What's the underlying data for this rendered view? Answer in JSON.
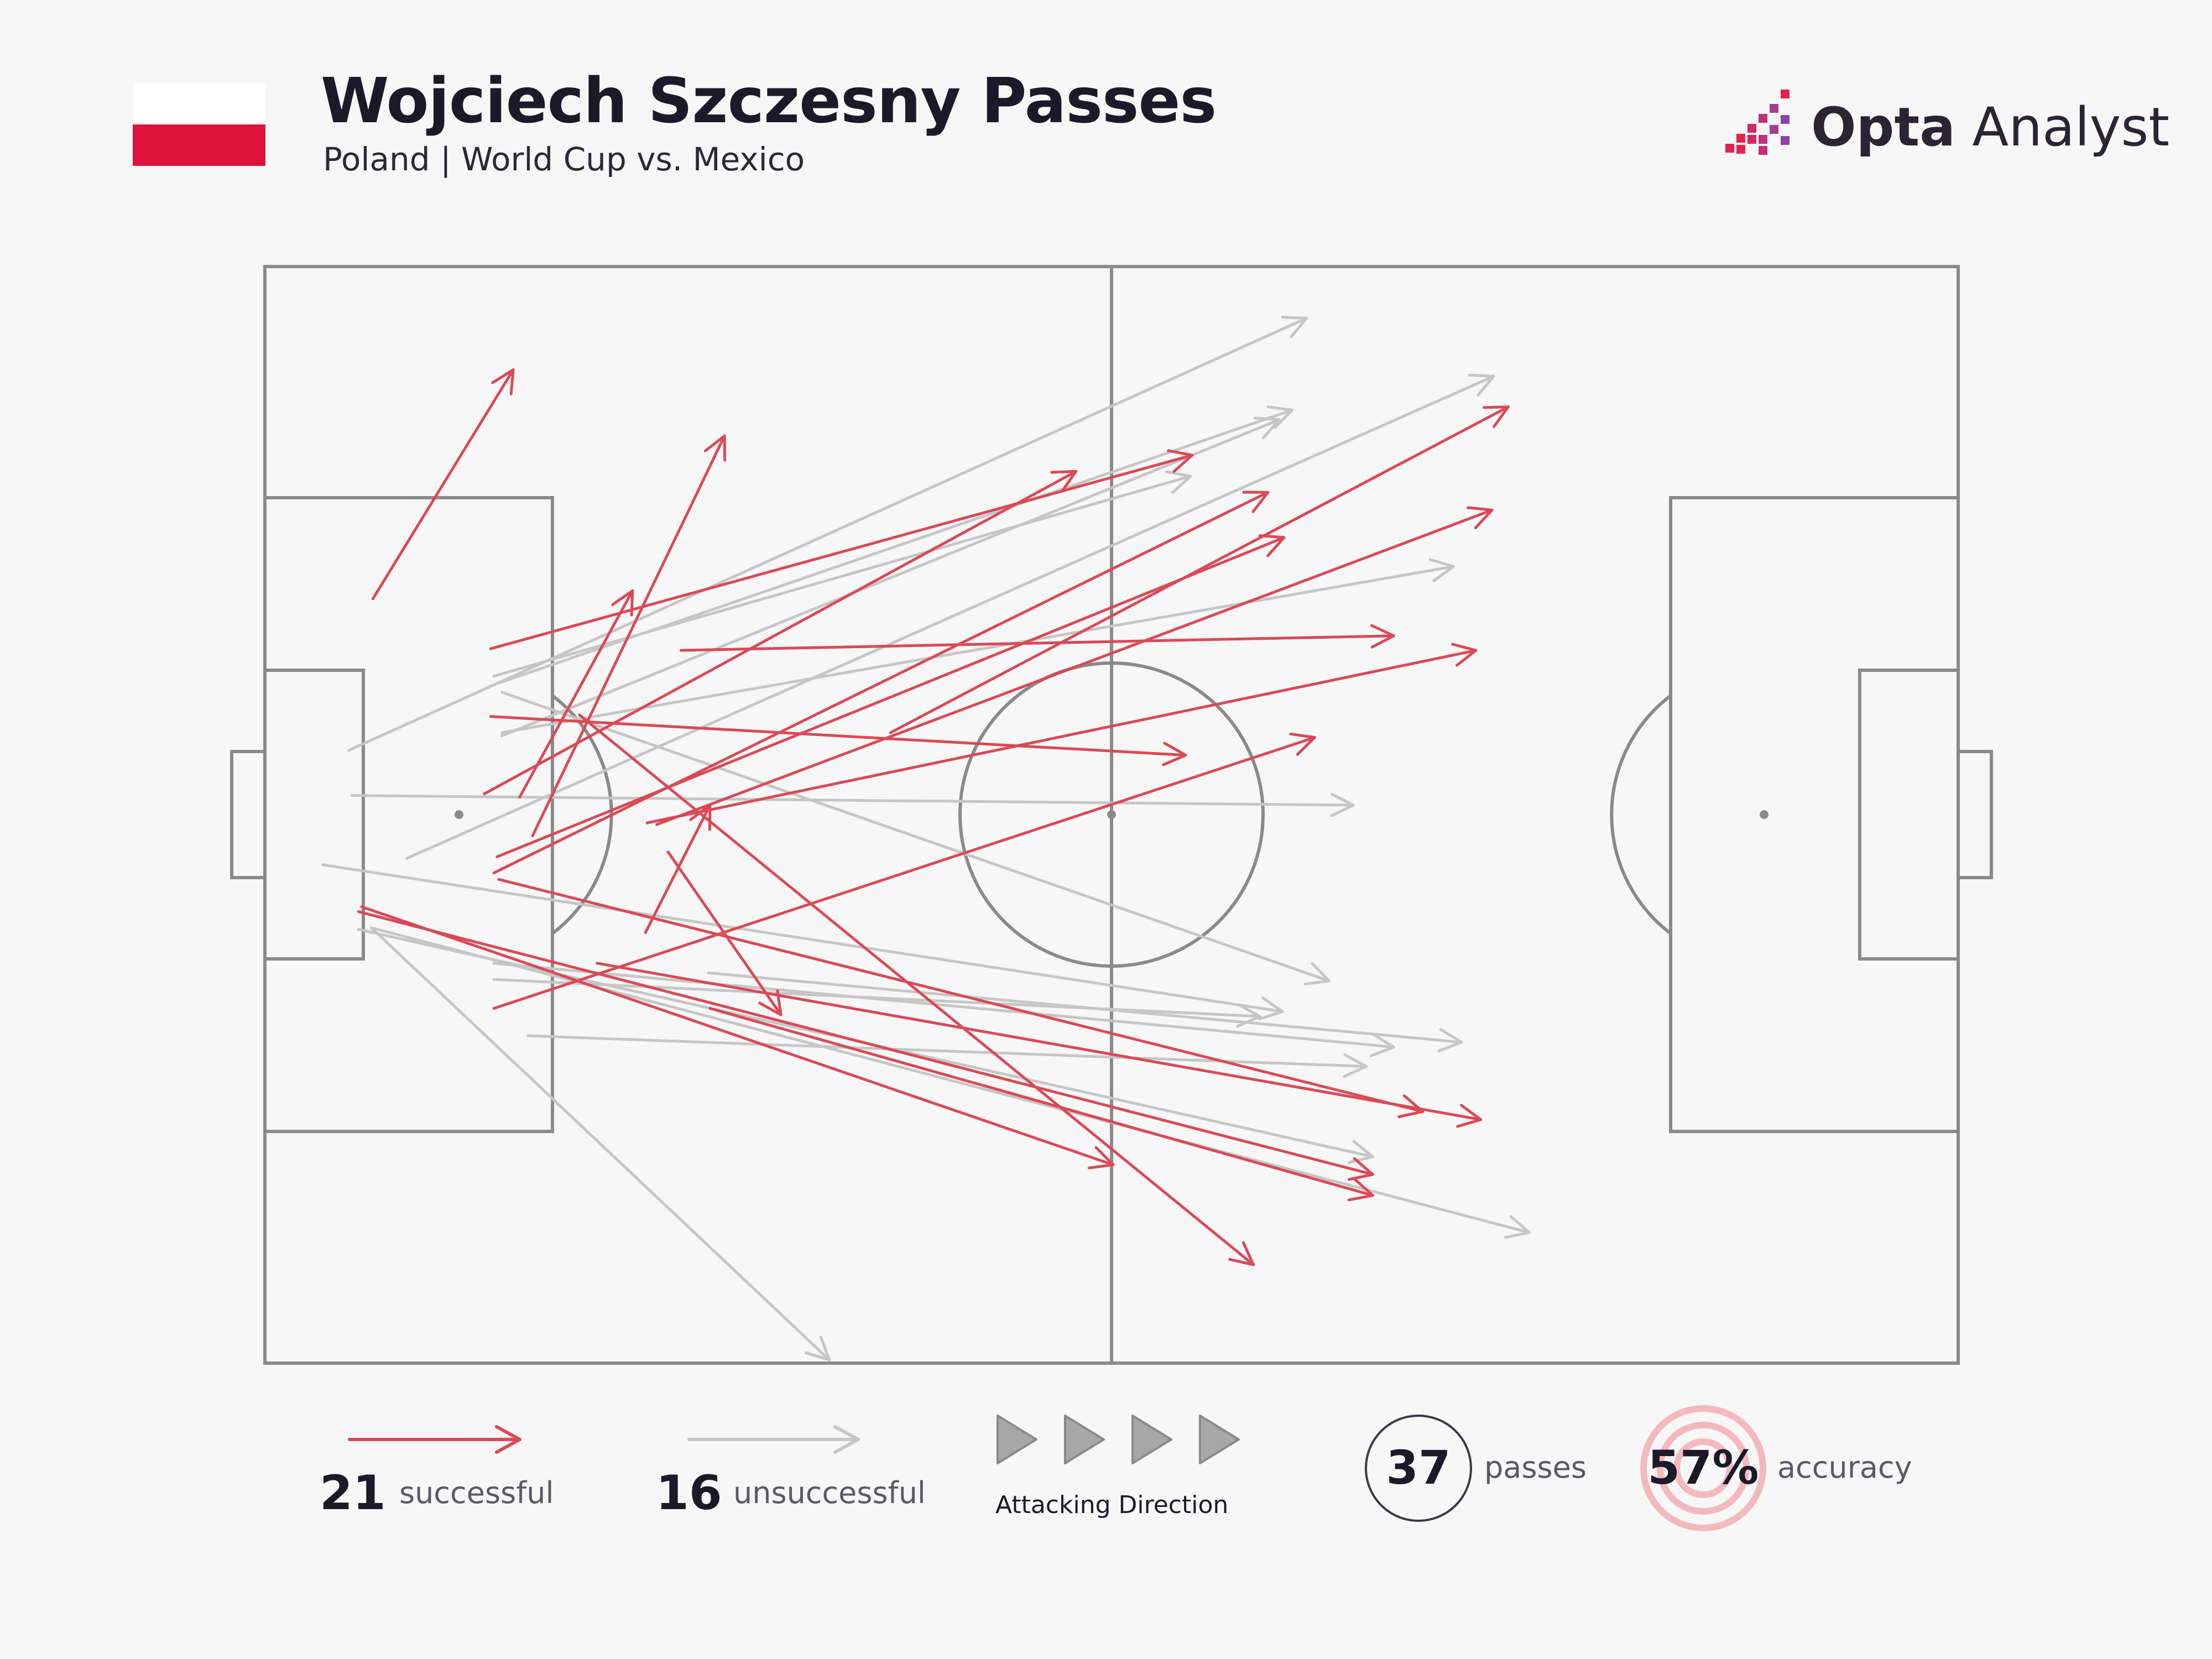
{
  "header": {
    "title": "Wojciech Szczesny Passes",
    "subtitle": "Poland | World Cup vs. Mexico"
  },
  "brand": {
    "name_strong": "Opta",
    "name_light": " Analyst",
    "icon": "opta-bars-icon"
  },
  "flag": {
    "top_color": "#ffffff",
    "bottom_color": "#dc143c"
  },
  "colors": {
    "successful": "#d94a57",
    "unsuccessful": "#c6c6c6",
    "pitch_lines": "#8a8a8a",
    "accent_ring": "#f3b9bf"
  },
  "legend": {
    "successful_count": "21",
    "successful_label": "successful",
    "unsuccessful_count": "16",
    "unsuccessful_label": "unsuccessful",
    "direction_label": "Attacking Direction",
    "passes_total": "37",
    "passes_label": "passes",
    "accuracy_value": "57%",
    "accuracy_label": "accuracy"
  },
  "chart_data": {
    "type": "pass_map",
    "pitch": {
      "length": 105,
      "width": 68
    },
    "attacking_direction": "right",
    "successful": [
      {
        "x1": 6.7,
        "y1": 47.4,
        "x2": 15.4,
        "y2": 61.6
      },
      {
        "x1": 16.6,
        "y1": 32.7,
        "x2": 28.5,
        "y2": 57.5
      },
      {
        "x1": 15.8,
        "y1": 35.1,
        "x2": 22.8,
        "y2": 47.9
      },
      {
        "x1": 14.0,
        "y1": 44.3,
        "x2": 57.5,
        "y2": 56.3
      },
      {
        "x1": 14.0,
        "y1": 40.1,
        "x2": 57.1,
        "y2": 37.7
      },
      {
        "x1": 25.8,
        "y1": 44.2,
        "x2": 70.0,
        "y2": 45.1
      },
      {
        "x1": 13.6,
        "y1": 35.3,
        "x2": 50.3,
        "y2": 55.3
      },
      {
        "x1": 23.6,
        "y1": 26.7,
        "x2": 27.6,
        "y2": 34.6
      },
      {
        "x1": 38.8,
        "y1": 39.1,
        "x2": 77.1,
        "y2": 59.3
      },
      {
        "x1": 14.4,
        "y1": 31.4,
        "x2": 63.2,
        "y2": 51.2
      },
      {
        "x1": 24.3,
        "y1": 33.4,
        "x2": 76.1,
        "y2": 52.9
      },
      {
        "x1": 23.7,
        "y1": 33.5,
        "x2": 75.1,
        "y2": 44.2
      },
      {
        "x1": 14.2,
        "y1": 30.4,
        "x2": 62.2,
        "y2": 54.0
      },
      {
        "x1": 14.2,
        "y1": 22.0,
        "x2": 65.1,
        "y2": 38.8
      },
      {
        "x1": 6.0,
        "y1": 28.3,
        "x2": 52.6,
        "y2": 12.3
      },
      {
        "x1": 14.5,
        "y1": 30.0,
        "x2": 71.8,
        "y2": 15.6
      },
      {
        "x1": 5.8,
        "y1": 28.0,
        "x2": 68.7,
        "y2": 11.7
      },
      {
        "x1": 19.5,
        "y1": 40.2,
        "x2": 61.3,
        "y2": 6.1
      },
      {
        "x1": 20.6,
        "y1": 24.8,
        "x2": 75.4,
        "y2": 15.1
      },
      {
        "x1": 27.6,
        "y1": 22.0,
        "x2": 68.7,
        "y2": 10.4
      },
      {
        "x1": 25.0,
        "y1": 31.7,
        "x2": 32.0,
        "y2": 21.6
      }
    ],
    "unsuccessful": [
      {
        "x1": 5.2,
        "y1": 38.0,
        "x2": 64.6,
        "y2": 64.8
      },
      {
        "x1": 14.0,
        "y1": 42.0,
        "x2": 63.7,
        "y2": 59.1
      },
      {
        "x1": 14.7,
        "y1": 39.1,
        "x2": 73.7,
        "y2": 49.4
      },
      {
        "x1": 8.8,
        "y1": 31.3,
        "x2": 76.2,
        "y2": 61.2
      },
      {
        "x1": 14.2,
        "y1": 42.6,
        "x2": 57.4,
        "y2": 55.0
      },
      {
        "x1": 14.7,
        "y1": 38.9,
        "x2": 62.9,
        "y2": 58.5
      },
      {
        "x1": 5.4,
        "y1": 35.2,
        "x2": 67.5,
        "y2": 34.6
      },
      {
        "x1": 14.7,
        "y1": 41.6,
        "x2": 66.0,
        "y2": 23.7
      },
      {
        "x1": 3.6,
        "y1": 30.9,
        "x2": 63.1,
        "y2": 21.8
      },
      {
        "x1": 14.2,
        "y1": 23.8,
        "x2": 61.7,
        "y2": 21.5
      },
      {
        "x1": 14.2,
        "y1": 24.8,
        "x2": 70.0,
        "y2": 19.6
      },
      {
        "x1": 27.5,
        "y1": 24.2,
        "x2": 74.2,
        "y2": 19.9
      },
      {
        "x1": 16.3,
        "y1": 20.3,
        "x2": 68.3,
        "y2": 18.4
      },
      {
        "x1": 5.8,
        "y1": 26.9,
        "x2": 68.7,
        "y2": 12.8
      },
      {
        "x1": 6.6,
        "y1": 27.0,
        "x2": 78.4,
        "y2": 8.1
      },
      {
        "x1": 6.6,
        "y1": 27.0,
        "x2": 35.0,
        "y2": 0.2
      }
    ]
  }
}
